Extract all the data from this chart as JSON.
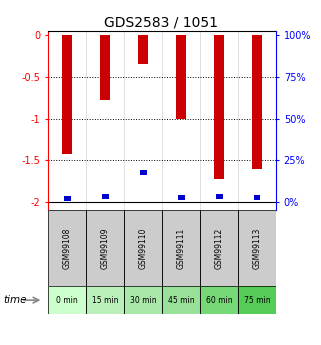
{
  "title": "GDS2583 / 1051",
  "categories": [
    "GSM99108",
    "GSM99109",
    "GSM99110",
    "GSM99111",
    "GSM99112",
    "GSM99113"
  ],
  "time_labels": [
    "0 min",
    "15 min",
    "30 min",
    "45 min",
    "60 min",
    "75 min"
  ],
  "log2_ratios": [
    -1.42,
    -0.78,
    -0.35,
    -1.0,
    -1.72,
    -1.6
  ],
  "percentile_ranks": [
    2.0,
    3.5,
    18.0,
    3.0,
    3.5,
    3.0
  ],
  "ylim": [
    -2.1,
    0.05
  ],
  "right_ticks": [
    0,
    25,
    50,
    75,
    100
  ],
  "right_tick_positions": [
    -2.0,
    -1.5,
    -1.0,
    -0.5,
    0.0
  ],
  "left_ticks": [
    0,
    -0.5,
    -1,
    -1.5,
    -2
  ],
  "bar_color": "#cc0000",
  "pct_color": "#0000cc",
  "time_colors": [
    "#ccffcc",
    "#bbeeaa",
    "#aaddaa",
    "#99cc99",
    "#77cc77",
    "#55bb55"
  ],
  "title_fontsize": 10,
  "tick_fontsize": 7,
  "bar_width": 0.25,
  "pct_bar_width": 0.18
}
